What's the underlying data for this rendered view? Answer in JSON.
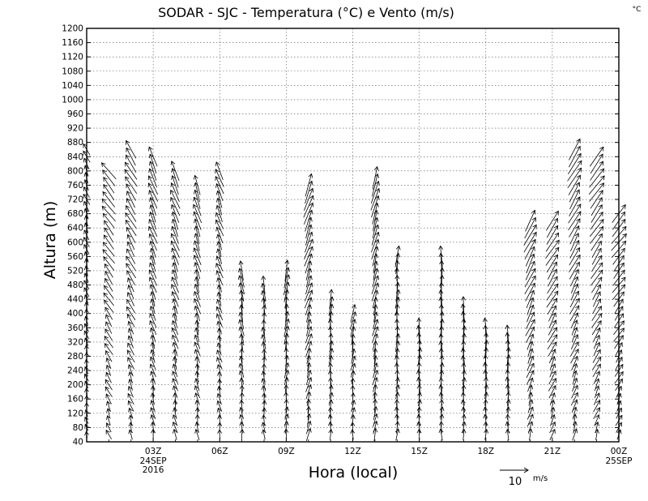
{
  "chart_data": {
    "type": "wind-barb-vector-field",
    "title": "SODAR - SJC - Temperatura (°C) e Vento (m/s)",
    "corner_label": "°C",
    "xlabel": "Hora (local)",
    "ylabel": "Altura (m)",
    "ylim": [
      40,
      1200
    ],
    "y_ticks": [
      "40",
      "80",
      "120",
      "160",
      "200",
      "240",
      "280",
      "320",
      "360",
      "400",
      "440",
      "480",
      "520",
      "560",
      "600",
      "640",
      "680",
      "720",
      "760",
      "800",
      "840",
      "880",
      "920",
      "960",
      "1000",
      "1040",
      "1080",
      "1120",
      "1160",
      "1200"
    ],
    "x_range_hours": [
      0,
      24
    ],
    "x_ticks": [
      {
        "hour": 3,
        "label": "03Z",
        "sub": [
          "24SEP",
          "2016"
        ]
      },
      {
        "hour": 6,
        "label": "06Z",
        "sub": []
      },
      {
        "hour": 9,
        "label": "09Z",
        "sub": []
      },
      {
        "hour": 12,
        "label": "12Z",
        "sub": []
      },
      {
        "hour": 15,
        "label": "15Z",
        "sub": []
      },
      {
        "hour": 18,
        "label": "18Z",
        "sub": []
      },
      {
        "hour": 21,
        "label": "21Z",
        "sub": []
      },
      {
        "hour": 24,
        "label": "00Z",
        "sub": [
          "25SEP"
        ]
      }
    ],
    "reference_vector": {
      "value": "10",
      "units": "m/s"
    },
    "profiles": [
      {
        "hour": 0.0,
        "top": 860,
        "u": -0.6,
        "v": 1.4,
        "dir": "NW aloft, N below"
      },
      {
        "hour": 1.0,
        "top": 800,
        "u": -1.6,
        "v": 2.0
      },
      {
        "hour": 2.0,
        "top": 860,
        "u": -1.4,
        "v": 2.2
      },
      {
        "hour": 3.0,
        "top": 840,
        "u": -1.0,
        "v": 2.4
      },
      {
        "hour": 4.0,
        "top": 800,
        "u": -1.0,
        "v": 2.4
      },
      {
        "hour": 5.0,
        "top": 760,
        "u": -0.8,
        "v": 2.4
      },
      {
        "hour": 6.0,
        "top": 800,
        "u": -0.8,
        "v": 2.2
      },
      {
        "hour": 7.0,
        "top": 520,
        "u": -0.4,
        "v": 2.4
      },
      {
        "hour": 8.0,
        "top": 480,
        "u": -0.2,
        "v": 2.2
      },
      {
        "hour": 9.0,
        "top": 520,
        "u": 0.4,
        "v": 2.6
      },
      {
        "hour": 10.0,
        "top": 760,
        "u": 1.0,
        "v": 2.8
      },
      {
        "hour": 11.0,
        "top": 440,
        "u": 0.2,
        "v": 2.4
      },
      {
        "hour": 12.0,
        "top": 400,
        "u": 0.4,
        "v": 2.2
      },
      {
        "hour": 13.0,
        "top": 780,
        "u": 0.8,
        "v": 2.8
      },
      {
        "hour": 14.0,
        "top": 560,
        "u": 0.2,
        "v": 2.6
      },
      {
        "hour": 15.0,
        "top": 360,
        "u": 0.0,
        "v": 2.4
      },
      {
        "hour": 16.0,
        "top": 560,
        "u": 0.0,
        "v": 2.6
      },
      {
        "hour": 17.0,
        "top": 420,
        "u": 0.0,
        "v": 2.4
      },
      {
        "hour": 18.0,
        "top": 360,
        "u": 0.0,
        "v": 2.4
      },
      {
        "hour": 19.0,
        "top": 340,
        "u": 0.0,
        "v": 2.4
      },
      {
        "hour": 20.0,
        "top": 660,
        "u": 1.4,
        "v": 2.6
      },
      {
        "hour": 21.0,
        "top": 660,
        "u": 1.6,
        "v": 2.4
      },
      {
        "hour": 22.0,
        "top": 860,
        "u": 1.6,
        "v": 2.6
      },
      {
        "hour": 23.0,
        "top": 840,
        "u": 1.8,
        "v": 2.4
      },
      {
        "hour": 24.0,
        "top": 680,
        "u": 1.8,
        "v": 2.2
      }
    ]
  }
}
